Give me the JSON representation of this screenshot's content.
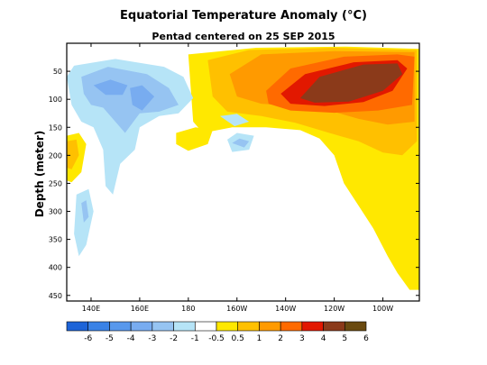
{
  "chart_data": {
    "type": "heatmap",
    "title": "Equatorial Temperature Anomaly (°C)",
    "subtitle": "Pentad centered on 25 SEP 2015",
    "ylabel": "Depth (meter)",
    "xlabel": "",
    "xlim_lon_east": [
      130,
      275
    ],
    "ylim_depth_m": [
      0,
      460
    ],
    "y_inverted": true,
    "x_ticks": [
      {
        "lon": 140,
        "label": "140E"
      },
      {
        "lon": 160,
        "label": "160E"
      },
      {
        "lon": 180,
        "label": "180"
      },
      {
        "lon": 200,
        "label": "160W"
      },
      {
        "lon": 220,
        "label": "140W"
      },
      {
        "lon": 240,
        "label": "120W"
      },
      {
        "lon": 260,
        "label": "100W"
      }
    ],
    "y_ticks": [
      {
        "depth": 50,
        "label": "50"
      },
      {
        "depth": 100,
        "label": "100"
      },
      {
        "depth": 150,
        "label": "150"
      },
      {
        "depth": 200,
        "label": "200"
      },
      {
        "depth": 250,
        "label": "250"
      },
      {
        "depth": 300,
        "label": "300"
      },
      {
        "depth": 350,
        "label": "350"
      },
      {
        "depth": 400,
        "label": "400"
      },
      {
        "depth": 450,
        "label": "450"
      }
    ],
    "grid": false,
    "colorbar": {
      "position": "bottom",
      "levels": [
        "-6",
        "-5",
        "-4",
        "-3",
        "-2",
        "-1",
        "-0.5",
        "0.5",
        "1",
        "2",
        "3",
        "4",
        "5",
        "6"
      ],
      "colors": [
        "#1e64d8",
        "#3a82e6",
        "#5898ec",
        "#78acf0",
        "#96c4f2",
        "#b6e4f7",
        "#ffffff",
        "#ffe800",
        "#ffc000",
        "#ff9a00",
        "#ff6a00",
        "#e21800",
        "#8b3a1a",
        "#6a4a10"
      ]
    },
    "anomaly_features": [
      {
        "name": "cold tongue western Pacific",
        "level": -2,
        "lon": [
          135,
          172
        ],
        "depth": [
          40,
          120
        ]
      },
      {
        "name": "cold band 150-170E",
        "level": -1,
        "lon": [
          148,
          175
        ],
        "depth": [
          40,
          200
        ]
      },
      {
        "name": "cold column near 137E",
        "level": -1,
        "lon": [
          134,
          140
        ],
        "depth": [
          260,
          380
        ]
      },
      {
        "name": "warm core central-east Pacific",
        "level": 6,
        "lon": [
          218,
          270
        ],
        "depth": [
          30,
          110
        ]
      },
      {
        "name": "warm 4-5 shell",
        "level": 4,
        "lon": [
          210,
          270
        ],
        "depth": [
          25,
          130
        ]
      },
      {
        "name": "warm 2-3 layer",
        "level": 2,
        "lon": [
          185,
          272
        ],
        "depth": [
          20,
          170
        ]
      },
      {
        "name": "warm 1 deep east",
        "level": 1,
        "lon": [
          240,
          275
        ],
        "depth": [
          150,
          440
        ]
      },
      {
        "name": "warm patch 140E",
        "level": 2,
        "lon": [
          130,
          136
        ],
        "depth": [
          165,
          245
        ]
      }
    ]
  }
}
